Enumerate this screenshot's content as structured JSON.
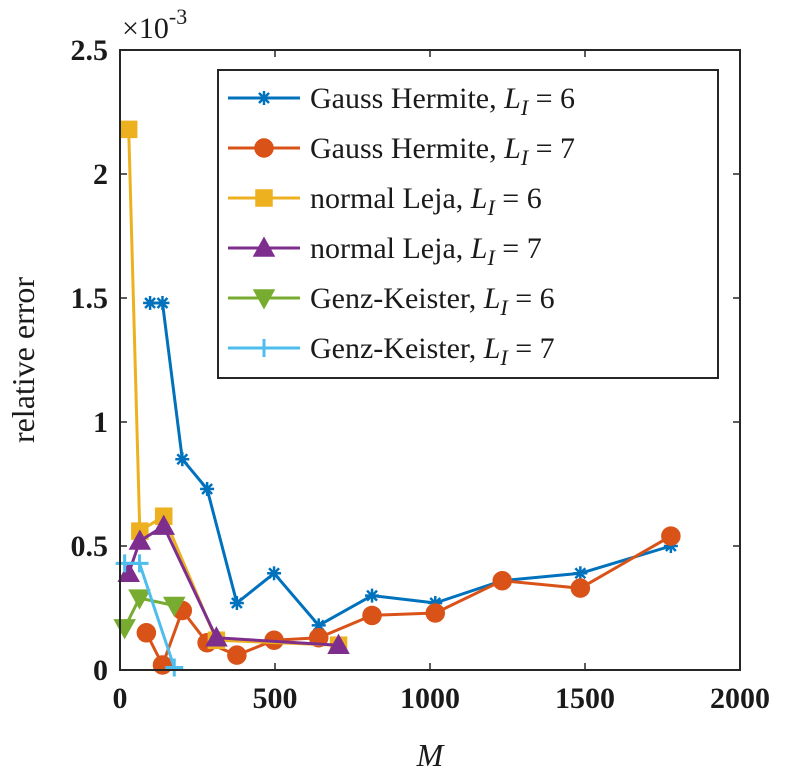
{
  "chart_data": {
    "type": "line",
    "title": "",
    "xlabel": "M",
    "ylabel": "relative error",
    "y_multiplier": "×10",
    "y_multiplier_exponent": "-3",
    "xlim": [
      0,
      2000
    ],
    "ylim": [
      0,
      2.5
    ],
    "xticks": [
      "0",
      "500",
      "1000",
      "1500",
      "2000"
    ],
    "yticks": [
      "0",
      "0.5",
      "1",
      "1.5",
      "2",
      "2.5"
    ],
    "grid": false,
    "legend_position": "top-right",
    "series": [
      {
        "name": "Gauss Hermite, L_I = 6",
        "legend_text": "Gauss Hermite, ",
        "legend_math": "L",
        "legend_sub": "I",
        "legend_eq": " = 6",
        "color": "#0072BD",
        "marker": "asterisk",
        "x": [
          97,
          137,
          201,
          281,
          377,
          497,
          641,
          813,
          1017,
          1233,
          1485,
          1777
        ],
        "y": [
          1.48,
          1.48,
          0.85,
          0.73,
          0.27,
          0.39,
          0.18,
          0.3,
          0.27,
          0.36,
          0.39,
          0.5
        ]
      },
      {
        "name": "Gauss Hermite, L_I = 7",
        "legend_text": "Gauss Hermite, ",
        "legend_math": "L",
        "legend_sub": "I",
        "legend_eq": " = 7",
        "color": "#D95319",
        "marker": "circle",
        "x": [
          85,
          137,
          201,
          281,
          377,
          497,
          641,
          813,
          1017,
          1233,
          1485,
          1777
        ],
        "y": [
          0.15,
          0.02,
          0.24,
          0.11,
          0.06,
          0.12,
          0.13,
          0.22,
          0.23,
          0.36,
          0.33,
          0.54
        ]
      },
      {
        "name": "normal Leja, L_I = 6",
        "legend_text": "normal Leja, ",
        "legend_math": "L",
        "legend_sub": "I",
        "legend_eq": " = 6",
        "color": "#EDB120",
        "marker": "square",
        "x": [
          28,
          64,
          141,
          311,
          705
        ],
        "y": [
          2.18,
          0.56,
          0.62,
          0.12,
          0.1
        ]
      },
      {
        "name": "normal Leja, L_I = 7",
        "legend_text": "normal Leja, ",
        "legend_math": "L",
        "legend_sub": "I",
        "legend_eq": " = 7",
        "color": "#7E2F8E",
        "marker": "triangle-up",
        "x": [
          28,
          64,
          141,
          311,
          705
        ],
        "y": [
          0.39,
          0.52,
          0.58,
          0.13,
          0.1
        ]
      },
      {
        "name": "Genz-Keister, L_I = 6",
        "legend_text": "Genz-Keister, ",
        "legend_math": "L",
        "legend_sub": "I",
        "legend_eq": " = 6",
        "color": "#77AC30",
        "marker": "triangle-down",
        "x": [
          15,
          63,
          175
        ],
        "y": [
          0.17,
          0.29,
          0.26
        ]
      },
      {
        "name": "Genz-Keister, L_I = 7",
        "legend_text": "Genz-Keister, ",
        "legend_math": "L",
        "legend_sub": "I",
        "legend_eq": " = 7",
        "color": "#4DBEEE",
        "marker": "plus",
        "x": [
          15,
          63,
          175
        ],
        "y": [
          0.43,
          0.43,
          0.01
        ]
      }
    ]
  }
}
